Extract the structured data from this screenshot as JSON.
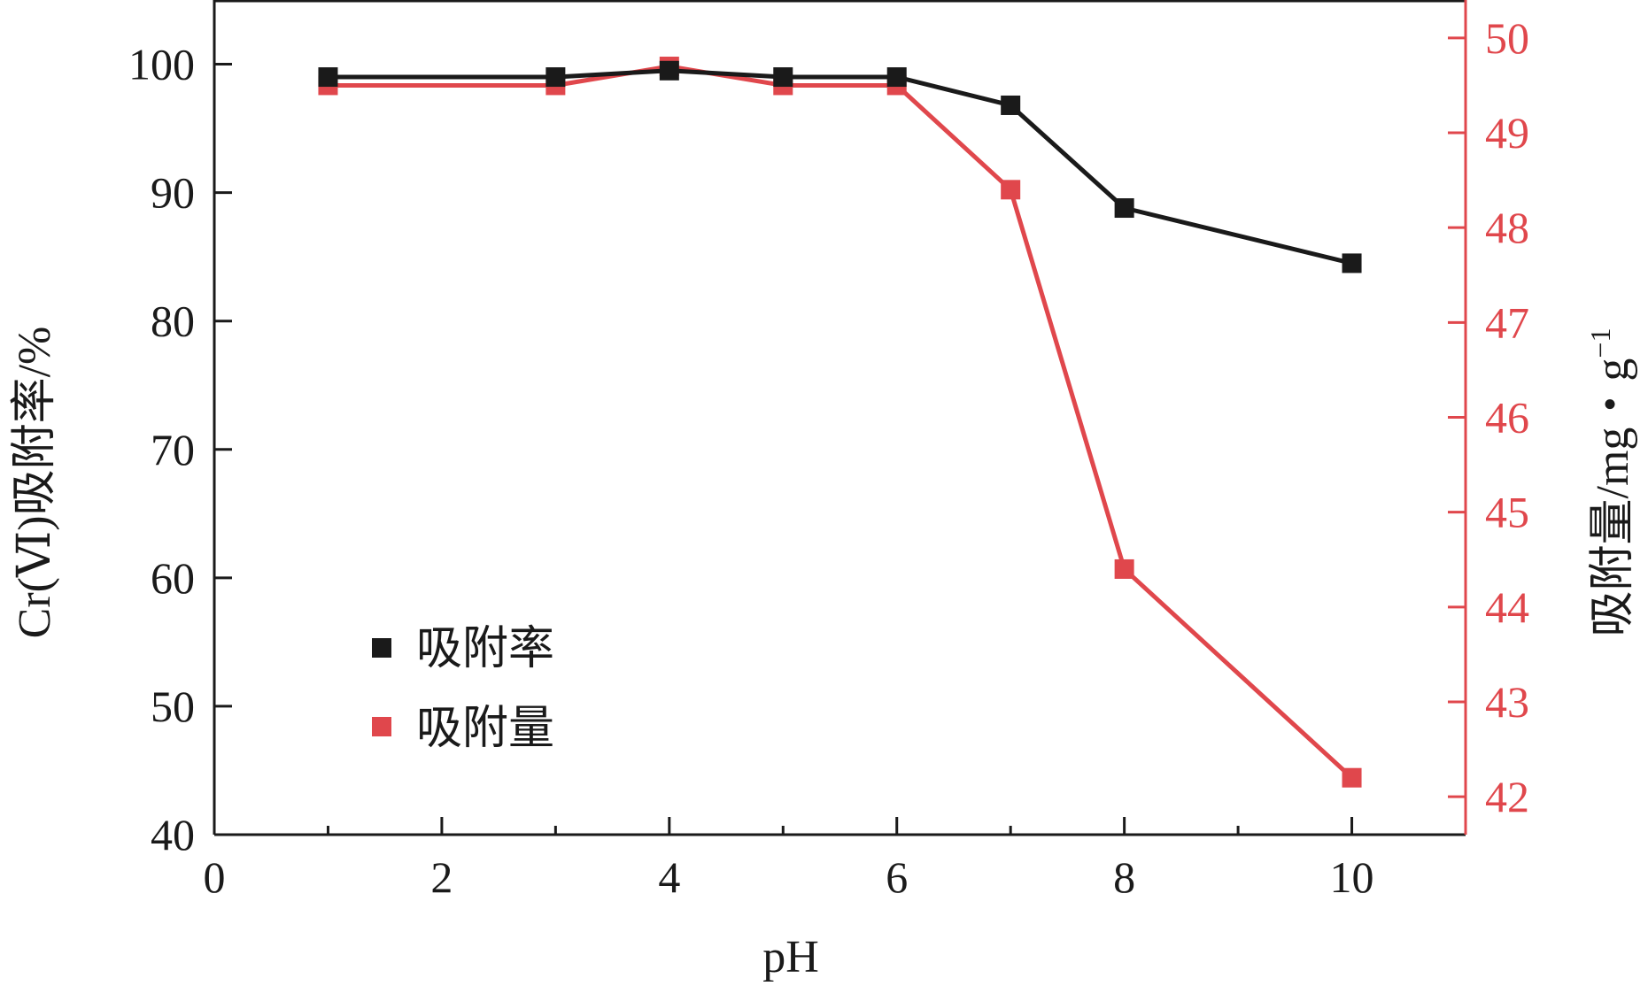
{
  "chart_data": {
    "type": "line",
    "x": [
      1,
      3,
      4,
      5,
      6,
      7,
      8,
      10
    ],
    "xlabel": "pH",
    "xlim": [
      0,
      11
    ],
    "xticks": [
      "0",
      "2",
      "4",
      "6",
      "8",
      "10"
    ],
    "xtick_values": [
      0,
      2,
      4,
      6,
      8,
      10
    ],
    "ylabel_left": "Cr(Ⅵ)吸附率/%",
    "ylim_left": [
      40,
      105
    ],
    "yticks_left": [
      "40",
      "50",
      "60",
      "70",
      "80",
      "90",
      "100"
    ],
    "ytick_values_left": [
      40,
      50,
      60,
      70,
      80,
      90,
      100
    ],
    "ylabel_right": "吸附量/mg・g",
    "ylabel_right_superscript": "−1",
    "ylim_right": [
      41.6,
      50.4
    ],
    "yticks_right": [
      "42",
      "43",
      "44",
      "45",
      "46",
      "47",
      "48",
      "49",
      "50"
    ],
    "ytick_values_right": [
      42,
      43,
      44,
      45,
      46,
      47,
      48,
      49,
      50
    ],
    "grid": false,
    "legend_position": "lower-left",
    "series": [
      {
        "name": "吸附率",
        "axis": "left",
        "color": "#1a1a1a",
        "marker": "square",
        "values": [
          99.0,
          99.0,
          99.5,
          99.0,
          99.0,
          96.8,
          88.8,
          84.5
        ]
      },
      {
        "name": "吸附量",
        "axis": "right",
        "color": "#e0474c",
        "marker": "square",
        "values": [
          49.5,
          49.5,
          49.7,
          49.5,
          49.5,
          48.4,
          44.4,
          42.2
        ]
      }
    ]
  },
  "colors": {
    "axis": "#1a1a1a",
    "right_axis": "#e0474c"
  }
}
